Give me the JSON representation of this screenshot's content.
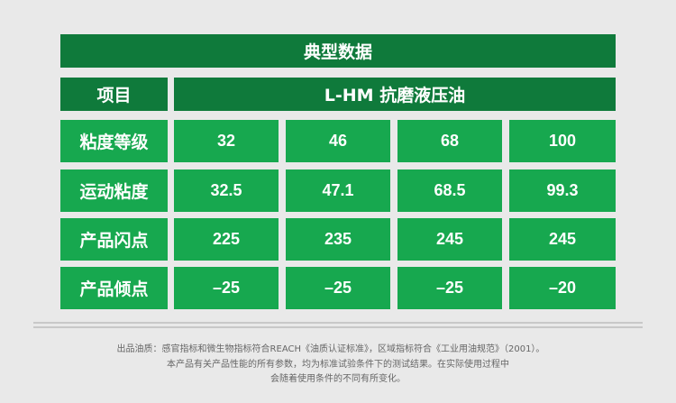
{
  "title": "典型数据",
  "header": {
    "label": "项目",
    "product": "L-HM 抗磨液压油"
  },
  "rows": [
    {
      "label": "粘度等级",
      "values": [
        "32",
        "46",
        "68",
        "100"
      ]
    },
    {
      "label": "运动粘度",
      "values": [
        "32.5",
        "47.1",
        "68.5",
        "99.3"
      ]
    },
    {
      "label": "产品闪点",
      "values": [
        "225",
        "235",
        "245",
        "245"
      ]
    },
    {
      "label": "产品倾点",
      "values": [
        "–25",
        "–25",
        "–25",
        "–20"
      ]
    }
  ],
  "notes": [
    "出品油质：感官指标和微生物指标符合REACH《油质认证标准》，区域指标符合《工业用油规范》（2001）。",
    "本产品有关产品性能的所有参数，均为标准试验条件下的测试结果。在实际使用过程中",
    "会随着使用条件的不同有所变化。"
  ],
  "colors": {
    "dark_green": "#0f7a3b",
    "light_green": "#17a84f"
  }
}
